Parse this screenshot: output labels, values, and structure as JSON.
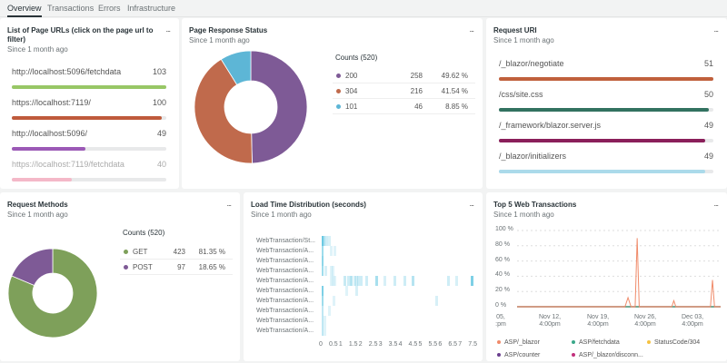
{
  "tabs": [
    {
      "label": "Overview",
      "active": true
    },
    {
      "label": "Transactions"
    },
    {
      "label": "Errors"
    },
    {
      "label": "Infrastructure"
    }
  ],
  "since": "Since 1 month ago",
  "more_label": "...",
  "page_urls": {
    "title": "List of Page URLs (click on the page url to filter)",
    "items": [
      {
        "url": "http://localhost:5096/fetchdata",
        "value": 103,
        "color": "#98c766"
      },
      {
        "url": "https://localhost:7119/",
        "value": 100,
        "color": "#bf5b3c"
      },
      {
        "url": "http://localhost:5096/",
        "value": 49,
        "color": "#9b59b6"
      },
      {
        "url": "https://localhost:7119/fetchdata",
        "value": 40,
        "color": "#f4b8c8"
      }
    ]
  },
  "response_status": {
    "title": "Page Response Status",
    "counts_label": "Counts (520)",
    "items": [
      {
        "label": "200",
        "count": 258,
        "pct": "49.62 %",
        "value": 49.62,
        "color": "#7e5a96"
      },
      {
        "label": "304",
        "count": 216,
        "pct": "41.54 %",
        "value": 41.54,
        "color": "#c06a4c"
      },
      {
        "label": "101",
        "count": 46,
        "pct": "8.85 %",
        "value": 8.85,
        "color": "#5db6d6"
      }
    ]
  },
  "request_uri": {
    "title": "Request URI",
    "items": [
      {
        "uri": "/_blazor/negotiate",
        "value": 51,
        "color": "#c0603c"
      },
      {
        "uri": "/css/site.css",
        "value": 50,
        "color": "#327260"
      },
      {
        "uri": "/_framework/blazor.server.js",
        "value": 49,
        "color": "#8a1f5a"
      },
      {
        "uri": "/_blazor/initializers",
        "value": 49,
        "color": "#abdaea"
      }
    ]
  },
  "request_methods": {
    "title": "Request Methods",
    "counts_label": "Counts (520)",
    "items": [
      {
        "label": "GET",
        "count": 423,
        "pct": "81.35 %",
        "value": 81.35,
        "color": "#7ea05a"
      },
      {
        "label": "POST",
        "count": 97,
        "pct": "18.65 %",
        "value": 18.65,
        "color": "#7e5a96"
      }
    ]
  },
  "load_time": {
    "title": "Load Time Distribution (seconds)",
    "rows": [
      "WebTransaction/St...",
      "WebTransaction/A...",
      "WebTransaction/A...",
      "WebTransaction/A...",
      "WebTransaction/A...",
      "WebTransaction/A...",
      "WebTransaction/A...",
      "WebTransaction/A...",
      "WebTransaction/A...",
      "WebTransaction/A..."
    ],
    "x_ticks": [
      "0",
      "0.5",
      "1",
      "1.5",
      "2",
      "2.5",
      "3",
      "3.5",
      "4",
      "4.5",
      "5",
      "5.5",
      "6",
      "6.5",
      "7",
      "7.5"
    ],
    "color": "#5ec4e0"
  },
  "chart_data": {
    "type": "line",
    "title": "Top 5 Web Transactions",
    "y_ticks": [
      "100 %",
      "80 %",
      "60 %",
      "40 %",
      "20 %",
      "0 %"
    ],
    "ylim": [
      0,
      100
    ],
    "x_ticks": [
      "05,\n:pm",
      "Nov 12,\n4:00pm",
      "Nov 19,\n4:00pm",
      "Nov 26,\n4:00pm",
      "Dec 03,\n4:00pm"
    ],
    "grid": true,
    "legend_placement": "bottom",
    "series": [
      {
        "name": "ASP/_blazor",
        "color": "#f08b6a",
        "points": [
          [
            0,
            0
          ],
          [
            0.53,
            0
          ],
          [
            0.545,
            12
          ],
          [
            0.56,
            0
          ],
          [
            0.58,
            0
          ],
          [
            0.59,
            90
          ],
          [
            0.6,
            0
          ],
          [
            0.76,
            0
          ],
          [
            0.77,
            8
          ],
          [
            0.78,
            0
          ],
          [
            0.95,
            0
          ],
          [
            0.96,
            35
          ],
          [
            0.97,
            0
          ],
          [
            1,
            0
          ]
        ]
      },
      {
        "name": "ASP/fetchdata",
        "color": "#3aa88a",
        "points": [
          [
            0,
            0
          ],
          [
            1,
            0
          ]
        ]
      },
      {
        "name": "StatusCode/304",
        "color": "#f5c242",
        "points": [
          [
            0,
            0
          ],
          [
            1,
            0
          ]
        ]
      },
      {
        "name": "ASP/counter",
        "color": "#6b3f8f",
        "points": [
          [
            0,
            0
          ],
          [
            1,
            0
          ]
        ]
      },
      {
        "name": "ASP/_blazor/disconn...",
        "color": "#c2307c",
        "points": [
          [
            0,
            0
          ],
          [
            1,
            0
          ]
        ]
      }
    ]
  }
}
